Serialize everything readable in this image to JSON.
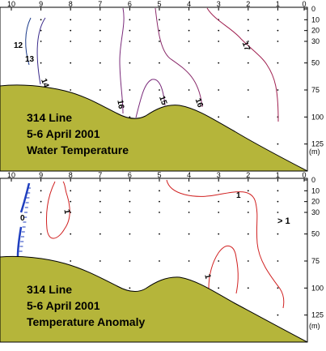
{
  "chart_data": [
    {
      "type": "contour",
      "title": [
        "314 Line",
        "5-6 April 2001",
        "Water Temperature"
      ],
      "x_ticks": [
        "10",
        "9",
        "8",
        "7",
        "6",
        "5",
        "4",
        "3",
        "2",
        "1",
        "0"
      ],
      "y_ticks": [
        "0",
        "10",
        "20",
        "30",
        "50",
        "75",
        "100",
        "125"
      ],
      "y_unit": "(m)",
      "ylim": [
        0,
        150
      ],
      "grid": "station sample dots",
      "contour_labels": [
        {
          "value": "12",
          "color": "#1a3a8a"
        },
        {
          "value": "13",
          "color": "#1a3a8a"
        },
        {
          "value": "14",
          "color": "#3a2a8a"
        },
        {
          "value": "15",
          "color": "#7a2a7a"
        },
        {
          "value": "16",
          "color": "#7a2a7a"
        },
        {
          "value": "16",
          "color": "#8a2a6a"
        },
        {
          "value": "17",
          "color": "#a02050"
        }
      ],
      "bottom_color": "#b5b53a"
    },
    {
      "type": "contour",
      "title": [
        "314 Line",
        "5-6 April 2001",
        "Temperature Anomaly"
      ],
      "x_ticks": [
        "10",
        "9",
        "8",
        "7",
        "6",
        "5",
        "4",
        "3",
        "2",
        "1",
        "0"
      ],
      "y_ticks": [
        "0",
        "10",
        "20",
        "30",
        "50",
        "75",
        "100",
        "125"
      ],
      "y_unit": "(m)",
      "ylim": [
        0,
        150
      ],
      "grid": "station sample dots",
      "contour_labels": [
        {
          "value": "0",
          "color": "#000000"
        },
        {
          "value": "1",
          "color": "#000000"
        },
        {
          "value": "1",
          "color": "#000000"
        },
        {
          "value": "1",
          "color": "#000000"
        }
      ],
      "annotations": [
        "> 1"
      ],
      "bottom_color": "#b5b53a"
    }
  ]
}
